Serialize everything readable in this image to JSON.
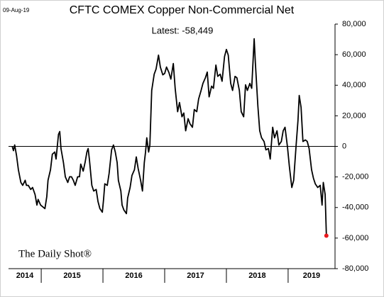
{
  "chart_data": {
    "type": "line",
    "date": "09-Aug-19",
    "title": "CFTC COMEX Copper Non-Commercial Net",
    "annotation": "Latest:  -58,449",
    "source": "The Daily Shot®",
    "color": "#000000",
    "latest_marker_color": "#e8191e",
    "zero_line": true,
    "grid": false,
    "xlim": [
      2014.47,
      2019.76
    ],
    "xticks": [
      2015,
      2016,
      2017,
      2018,
      2019
    ],
    "year_labels": [
      2014,
      2015,
      2016,
      2017,
      2018,
      2019
    ],
    "ylim": [
      -80000,
      80000
    ],
    "yticks": [
      {
        "value": -80000,
        "label": "-80,000"
      },
      {
        "value": -60000,
        "label": "-60,000"
      },
      {
        "value": -40000,
        "label": "-40,000"
      },
      {
        "value": -20000,
        "label": "-20,000"
      },
      0,
      {
        "value": 20000,
        "label": "20,000"
      },
      {
        "value": 40000,
        "label": "40,000"
      },
      {
        "value": 60000,
        "label": "60,000"
      },
      {
        "value": 80000,
        "label": "80,000"
      }
    ],
    "series": [
      {
        "name": "CFTC COMEX Copper Non-Commercial Net",
        "x": [
          2014.53,
          2014.55,
          2014.57,
          2014.6,
          2014.63,
          2014.67,
          2014.7,
          2014.74,
          2014.76,
          2014.79,
          2014.83,
          2014.86,
          2014.9,
          2014.93,
          2014.95,
          2014.99,
          2015.02,
          2015.06,
          2015.09,
          2015.11,
          2015.15,
          2015.18,
          2015.22,
          2015.24,
          2015.28,
          2015.3,
          2015.32,
          2015.36,
          2015.39,
          2015.43,
          2015.46,
          2015.49,
          2015.52,
          2015.55,
          2015.59,
          2015.62,
          2015.64,
          2015.68,
          2015.71,
          2015.74,
          2015.76,
          2015.78,
          2015.82,
          2015.85,
          2015.89,
          2015.92,
          2015.95,
          2015.99,
          2016.01,
          2016.03,
          2016.07,
          2016.1,
          2016.14,
          2016.17,
          2016.2,
          2016.23,
          2016.25,
          2016.29,
          2016.31,
          2016.34,
          2016.38,
          2016.4,
          2016.44,
          2016.47,
          2016.51,
          2016.54,
          2016.57,
          2016.61,
          2016.64,
          2016.67,
          2016.69,
          2016.71,
          2016.74,
          2016.76,
          2016.79,
          2016.83,
          2016.86,
          2016.9,
          2016.93,
          2016.97,
          2017.0,
          2017.03,
          2017.07,
          2017.1,
          2017.14,
          2017.17,
          2017.21,
          2017.24,
          2017.28,
          2017.31,
          2017.34,
          2017.38,
          2017.41,
          2017.45,
          2017.48,
          2017.52,
          2017.55,
          2017.59,
          2017.62,
          2017.66,
          2017.69,
          2017.72,
          2017.76,
          2017.79,
          2017.83,
          2017.86,
          2017.9,
          2017.93,
          2017.97,
          2018.0,
          2018.03,
          2018.07,
          2018.1,
          2018.14,
          2018.17,
          2018.21,
          2018.24,
          2018.28,
          2018.31,
          2018.34,
          2018.38,
          2018.41,
          2018.45,
          2018.47,
          2018.51,
          2018.54,
          2018.57,
          2018.61,
          2018.64,
          2018.68,
          2018.71,
          2018.75,
          2018.78,
          2018.82,
          2018.85,
          2018.89,
          2018.92,
          2018.95,
          2018.99,
          2019.02,
          2019.06,
          2019.09,
          2019.13,
          2019.16,
          2019.18,
          2019.21,
          2019.24,
          2019.28,
          2019.31,
          2019.34,
          2019.38,
          2019.41,
          2019.44,
          2019.48,
          2019.52,
          2019.55,
          2019.57,
          2019.6,
          2019.62
        ],
        "values": [
          0,
          -2800,
          900,
          -6000,
          -15300,
          -23600,
          -25500,
          -22200,
          -25500,
          -25500,
          -28200,
          -26900,
          -31500,
          -38400,
          -34700,
          -38400,
          -39400,
          -40700,
          -32900,
          -22200,
          -15300,
          -5100,
          -3700,
          -8300,
          7900,
          9700,
          -1400,
          -10600,
          -19900,
          -23600,
          -19900,
          -19900,
          -22200,
          -25500,
          -19900,
          -19900,
          -11600,
          -16200,
          -10600,
          -3700,
          -1400,
          -8300,
          -25500,
          -29200,
          -28200,
          -36100,
          -40700,
          -43100,
          -34700,
          -24500,
          -25500,
          -17600,
          -2300,
          900,
          -3700,
          -10600,
          -22200,
          -29200,
          -38400,
          -41700,
          -44000,
          -33800,
          -26900,
          -19000,
          -15300,
          -6900,
          -14400,
          -22200,
          -29200,
          -10600,
          -3700,
          5600,
          -3700,
          900,
          36600,
          47200,
          50500,
          59700,
          51900,
          46800,
          47700,
          51900,
          48200,
          44000,
          54200,
          38000,
          22700,
          28700,
          19400,
          21800,
          10200,
          18100,
          14800,
          12500,
          24100,
          22700,
          31000,
          36600,
          41200,
          44900,
          48600,
          32400,
          39400,
          38000,
          53200,
          45800,
          47200,
          42600,
          58800,
          63400,
          59700,
          41200,
          36600,
          45800,
          44900,
          36600,
          22700,
          19400,
          40300,
          36600,
          41200,
          38000,
          70400,
          54200,
          26400,
          10200,
          5600,
          3200,
          -2300,
          -1400,
          -8300,
          12500,
          5600,
          10200,
          900,
          3200,
          10200,
          12500,
          -500,
          -13000,
          -26900,
          -22200,
          900,
          17100,
          33300,
          25500,
          3200,
          4200,
          3200,
          -1400,
          -15300,
          -20800,
          -24500,
          -26900,
          -25500,
          -38400,
          -23600,
          -31500,
          -58449
        ]
      }
    ]
  }
}
